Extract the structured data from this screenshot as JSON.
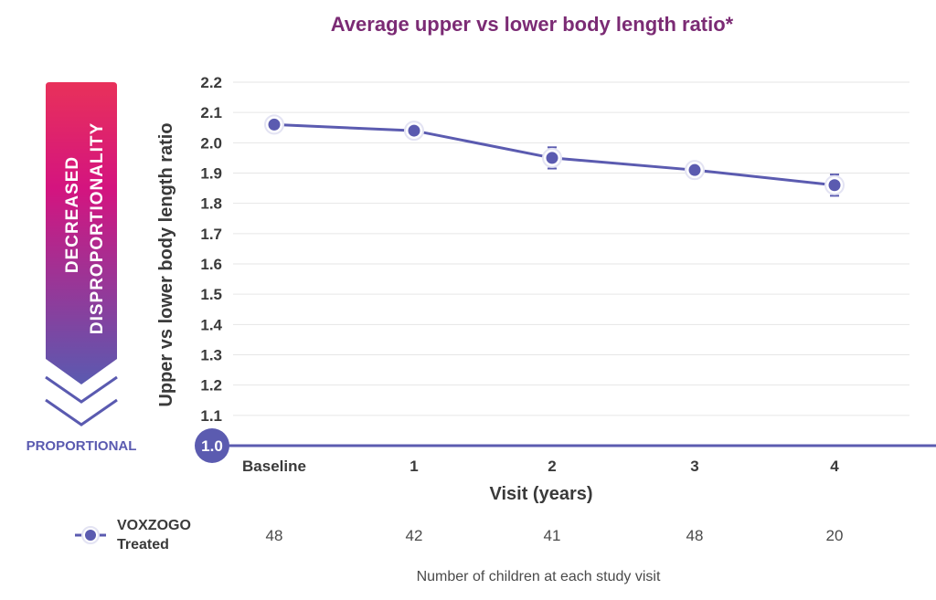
{
  "chart_data": {
    "type": "line",
    "title": "Average upper vs lower body length ratio*",
    "xlabel": "Visit (years)",
    "ylabel": "Upper vs lower body length ratio",
    "categories": [
      "Baseline",
      "1",
      "2",
      "3",
      "4"
    ],
    "yticks": [
      "1.0",
      "1.1",
      "1.2",
      "1.3",
      "1.4",
      "1.5",
      "1.6",
      "1.7",
      "1.8",
      "1.9",
      "2.0",
      "2.1",
      "2.2"
    ],
    "ylim": [
      1.0,
      2.2
    ],
    "grid": true,
    "series": [
      {
        "name": "VOXZOGO Treated",
        "values": [
          2.06,
          2.04,
          1.95,
          1.91,
          1.86
        ],
        "error": [
          0.01,
          0.01,
          0.035,
          0.01,
          0.035
        ],
        "color": "#5b5bb0"
      }
    ],
    "legend": {
      "line1": "VOXZOGO",
      "line2": "Treated",
      "placement": "bottom-left"
    },
    "counts": [
      "48",
      "42",
      "41",
      "48",
      "20"
    ],
    "counts_label": "Number of children at each study visit",
    "arrow": {
      "line1": "DECREASED",
      "line2": "DISPROPORTIONALITY",
      "bottom_label": "PROPORTIONAL",
      "gradient": [
        "#e8315a",
        "#d4147f",
        "#5a5ab0"
      ]
    }
  }
}
